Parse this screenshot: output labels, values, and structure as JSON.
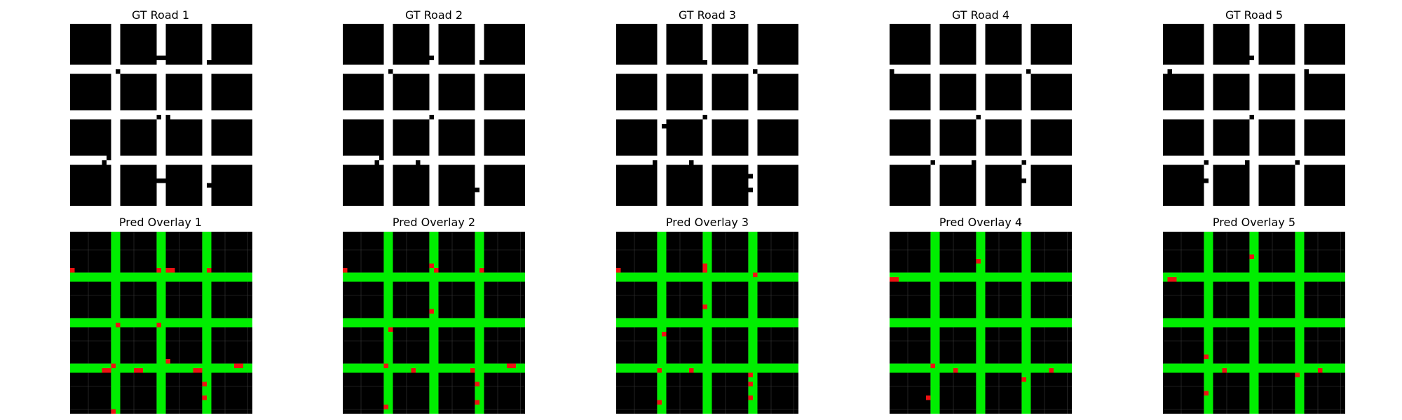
{
  "colors": {
    "background": "#ffffff",
    "block": "#000000",
    "road_overlay": "#00ee00",
    "error_overlay": "#ee1111",
    "faint_grid": "#3a3a3a"
  },
  "chart_data": {
    "type": "heatmap",
    "layout": {
      "rows": 2,
      "cols": 5
    },
    "grid_cells": 40,
    "gt_titles": [
      "GT Road 1",
      "GT Road 2",
      "GT Road 3",
      "GT Road 4",
      "GT Road 5"
    ],
    "pred_titles": [
      "Pred Overlay 1",
      "Pred Overlay 2",
      "Pred Overlay 3",
      "Pred Overlay 4",
      "Pred Overlay 5"
    ],
    "road_rows": [
      9,
      19,
      29
    ],
    "road_cols": [
      9,
      19,
      29
    ],
    "road_width": 2,
    "samples": [
      {
        "notches": [
          [
            8,
            0,
            1,
            1
          ],
          [
            7,
            19,
            1,
            2
          ],
          [
            8,
            21,
            1,
            1
          ],
          [
            8,
            30,
            1,
            2
          ],
          [
            20,
            19,
            1,
            1
          ],
          [
            10,
            10,
            1,
            1
          ],
          [
            20,
            21,
            1,
            1
          ],
          [
            30,
            7,
            1,
            1
          ],
          [
            31,
            6,
            2,
            1
          ],
          [
            29,
            8,
            1,
            1
          ],
          [
            37,
            8,
            1,
            1
          ],
          [
            36,
            16,
            2,
            1
          ],
          [
            34,
            19,
            1,
            2
          ],
          [
            37,
            28,
            1,
            1
          ],
          [
            35,
            30,
            1,
            1
          ]
        ],
        "errors": [
          [
            8,
            0,
            1,
            1
          ],
          [
            8,
            19,
            1,
            1
          ],
          [
            8,
            21,
            1,
            2
          ],
          [
            8,
            30,
            1,
            1
          ],
          [
            20,
            19,
            1,
            1
          ],
          [
            20,
            10,
            1,
            1
          ],
          [
            28,
            21,
            1,
            1
          ],
          [
            29,
            9,
            1,
            1
          ],
          [
            30,
            7,
            1,
            2
          ],
          [
            30,
            14,
            1,
            2
          ],
          [
            30,
            27,
            1,
            2
          ],
          [
            29,
            36,
            1,
            2
          ],
          [
            33,
            29,
            1,
            1
          ],
          [
            36,
            29,
            1,
            1
          ],
          [
            39,
            9,
            1,
            1
          ]
        ]
      },
      {
        "notches": [
          [
            8,
            0,
            1,
            1
          ],
          [
            7,
            19,
            1,
            1
          ],
          [
            8,
            21,
            1,
            1
          ],
          [
            8,
            30,
            1,
            1
          ],
          [
            20,
            19,
            1,
            1
          ],
          [
            10,
            10,
            1,
            1
          ],
          [
            30,
            7,
            1,
            1
          ],
          [
            30,
            16,
            1,
            1
          ],
          [
            29,
            8,
            1,
            1
          ],
          [
            37,
            8,
            1,
            1
          ],
          [
            32,
            28,
            1,
            1
          ],
          [
            36,
            29,
            1,
            1
          ]
        ],
        "errors": [
          [
            8,
            0,
            1,
            1
          ],
          [
            7,
            19,
            1,
            1
          ],
          [
            8,
            20,
            1,
            1
          ],
          [
            8,
            30,
            1,
            1
          ],
          [
            17,
            19,
            1,
            1
          ],
          [
            21,
            10,
            1,
            1
          ],
          [
            29,
            9,
            1,
            1
          ],
          [
            30,
            15,
            1,
            1
          ],
          [
            30,
            28,
            1,
            1
          ],
          [
            29,
            36,
            1,
            2
          ],
          [
            33,
            29,
            1,
            1
          ],
          [
            37,
            29,
            1,
            1
          ],
          [
            38,
            9,
            1,
            1
          ]
        ]
      },
      {
        "notches": [
          [
            8,
            0,
            1,
            1
          ],
          [
            7,
            18,
            1,
            1
          ],
          [
            8,
            19,
            1,
            1
          ],
          [
            10,
            30,
            1,
            1
          ],
          [
            20,
            19,
            1,
            1
          ],
          [
            22,
            10,
            1,
            1
          ],
          [
            30,
            8,
            1,
            1
          ],
          [
            30,
            16,
            1,
            1
          ],
          [
            37,
            8,
            1,
            1
          ],
          [
            33,
            29,
            1,
            1
          ],
          [
            36,
            29,
            1,
            1
          ]
        ],
        "errors": [
          [
            8,
            0,
            1,
            1
          ],
          [
            7,
            19,
            1,
            1
          ],
          [
            8,
            19,
            1,
            1
          ],
          [
            9,
            30,
            1,
            1
          ],
          [
            16,
            19,
            1,
            1
          ],
          [
            22,
            10,
            1,
            1
          ],
          [
            30,
            9,
            1,
            1
          ],
          [
            30,
            16,
            1,
            1
          ],
          [
            31,
            29,
            1,
            1
          ],
          [
            33,
            29,
            1,
            1
          ],
          [
            36,
            29,
            1,
            1
          ],
          [
            37,
            9,
            1,
            1
          ]
        ]
      },
      {
        "notches": [
          [
            10,
            0,
            1,
            1
          ],
          [
            7,
            18,
            1,
            1
          ],
          [
            10,
            30,
            1,
            1
          ],
          [
            20,
            19,
            1,
            1
          ],
          [
            30,
            9,
            1,
            1
          ],
          [
            30,
            18,
            1,
            1
          ],
          [
            30,
            29,
            1,
            1
          ],
          [
            34,
            8,
            1,
            1
          ],
          [
            34,
            29,
            1,
            1
          ]
        ],
        "errors": [
          [
            10,
            0,
            1,
            2
          ],
          [
            6,
            19,
            1,
            1
          ],
          [
            29,
            9,
            1,
            1
          ],
          [
            30,
            14,
            1,
            1
          ],
          [
            30,
            35,
            1,
            1
          ],
          [
            32,
            29,
            1,
            1
          ],
          [
            36,
            8,
            1,
            1
          ]
        ]
      },
      {
        "notches": [
          [
            10,
            1,
            1,
            1
          ],
          [
            7,
            19,
            1,
            1
          ],
          [
            10,
            31,
            1,
            1
          ],
          [
            20,
            19,
            1,
            1
          ],
          [
            30,
            9,
            1,
            1
          ],
          [
            30,
            18,
            1,
            1
          ],
          [
            30,
            29,
            1,
            1
          ],
          [
            34,
            9,
            1,
            1
          ]
        ],
        "errors": [
          [
            10,
            1,
            1,
            2
          ],
          [
            5,
            19,
            1,
            1
          ],
          [
            27,
            9,
            1,
            1
          ],
          [
            30,
            13,
            1,
            1
          ],
          [
            30,
            34,
            1,
            1
          ],
          [
            31,
            29,
            1,
            1
          ],
          [
            35,
            9,
            1,
            1
          ]
        ]
      }
    ]
  }
}
